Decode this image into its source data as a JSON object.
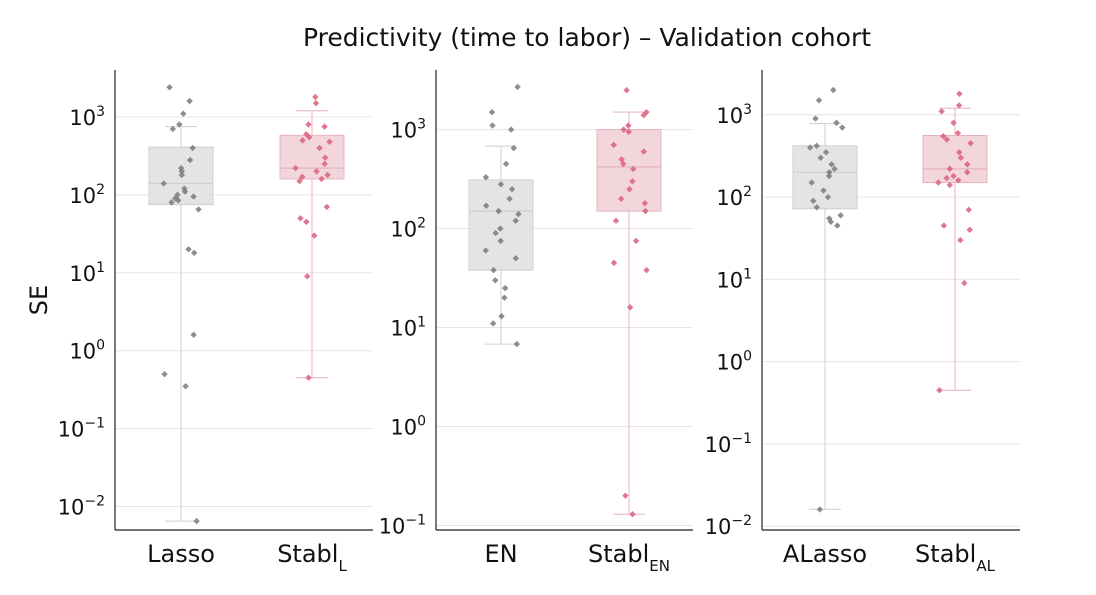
{
  "figure": {
    "title": "Predictivity (time to labor) – Validation cohort",
    "ylabel": "SE"
  },
  "colors": {
    "baseline_box": "#e4e4e4",
    "baseline_point": "#7a7a7a",
    "stabl_box": "#f3d5dc",
    "stabl_point": "#d9607a",
    "grid": "#e6e6e6",
    "axis": "#222222"
  },
  "chart_data": [
    {
      "type": "box",
      "scale": "log",
      "ylim": [
        0.005,
        4000
      ],
      "yticks": [
        0.01,
        0.1,
        1,
        10,
        100,
        1000
      ],
      "tick_labels": [
        {
          "base": "10",
          "exp": "−2"
        },
        {
          "base": "10",
          "exp": "−1"
        },
        {
          "base": "10",
          "exp": "0"
        },
        {
          "base": "10",
          "exp": "1"
        },
        {
          "base": "10",
          "exp": "2"
        },
        {
          "base": "10",
          "exp": "3"
        }
      ],
      "grid": true,
      "series": [
        {
          "label": "Lasso",
          "sub": "",
          "style": "baseline",
          "whisker_low": 0.0065,
          "q1": 75,
          "median": 140,
          "q3": 410,
          "whisker_high": 750,
          "points": [
            2400,
            1600,
            1100,
            800,
            700,
            400,
            280,
            220,
            200,
            180,
            140,
            120,
            110,
            100,
            95,
            90,
            85,
            80,
            65,
            20,
            18,
            1.6,
            0.5,
            0.35,
            0.0065
          ]
        },
        {
          "label": "Stabl",
          "sub": "L",
          "style": "stabl",
          "whisker_low": 0.45,
          "q1": 160,
          "median": 220,
          "q3": 580,
          "whisker_high": 1200,
          "points": [
            1800,
            1500,
            800,
            750,
            600,
            550,
            500,
            480,
            400,
            300,
            250,
            220,
            200,
            180,
            170,
            160,
            150,
            70,
            50,
            45,
            30,
            9,
            0.45
          ]
        }
      ]
    },
    {
      "type": "box",
      "scale": "log",
      "ylim": [
        0.09,
        4000
      ],
      "yticks": [
        0.1,
        1,
        10,
        100,
        1000
      ],
      "tick_labels": [
        {
          "base": "10",
          "exp": "−1"
        },
        {
          "base": "10",
          "exp": "0"
        },
        {
          "base": "10",
          "exp": "1"
        },
        {
          "base": "10",
          "exp": "2"
        },
        {
          "base": "10",
          "exp": "3"
        }
      ],
      "grid": true,
      "series": [
        {
          "label": "EN",
          "sub": "",
          "style": "baseline",
          "whisker_low": 6.8,
          "q1": 38,
          "median": 150,
          "q3": 310,
          "whisker_high": 680,
          "points": [
            2700,
            1500,
            1100,
            1000,
            650,
            450,
            330,
            280,
            250,
            200,
            170,
            150,
            140,
            120,
            100,
            90,
            75,
            60,
            50,
            38,
            30,
            25,
            20,
            13,
            11,
            6.8
          ]
        },
        {
          "label": "Stabl",
          "sub": "EN",
          "style": "stabl",
          "whisker_low": 0.13,
          "q1": 150,
          "median": 420,
          "q3": 1000,
          "whisker_high": 1500,
          "points": [
            2500,
            1500,
            1400,
            1100,
            1000,
            950,
            700,
            600,
            500,
            450,
            400,
            300,
            250,
            200,
            180,
            150,
            120,
            75,
            45,
            38,
            16,
            0.2,
            0.13
          ]
        }
      ]
    },
    {
      "type": "box",
      "scale": "log",
      "ylim": [
        0.009,
        3500
      ],
      "yticks": [
        0.01,
        0.1,
        1,
        10,
        100,
        1000
      ],
      "tick_labels": [
        {
          "base": "10",
          "exp": "−2"
        },
        {
          "base": "10",
          "exp": "−1"
        },
        {
          "base": "10",
          "exp": "0"
        },
        {
          "base": "10",
          "exp": "1"
        },
        {
          "base": "10",
          "exp": "2"
        },
        {
          "base": "10",
          "exp": "3"
        }
      ],
      "grid": true,
      "series": [
        {
          "label": "ALasso",
          "sub": "",
          "style": "baseline",
          "whisker_low": 0.016,
          "q1": 72,
          "median": 200,
          "q3": 420,
          "whisker_high": 780,
          "points": [
            2000,
            1500,
            900,
            800,
            700,
            420,
            400,
            350,
            300,
            250,
            220,
            200,
            180,
            150,
            120,
            100,
            90,
            75,
            60,
            55,
            50,
            45,
            0.016
          ]
        },
        {
          "label": "Stabl",
          "sub": "AL",
          "style": "stabl",
          "whisker_low": 0.45,
          "q1": 150,
          "median": 220,
          "q3": 560,
          "whisker_high": 1200,
          "points": [
            1800,
            1300,
            1100,
            800,
            600,
            550,
            500,
            450,
            350,
            300,
            250,
            220,
            200,
            180,
            170,
            160,
            150,
            140,
            70,
            45,
            40,
            30,
            9,
            0.45
          ]
        }
      ]
    }
  ]
}
